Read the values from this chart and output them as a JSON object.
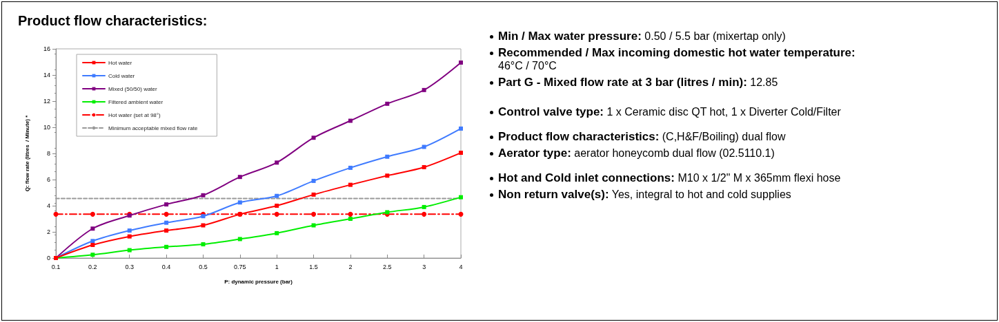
{
  "chart_data": [
    {
      "type": "line",
      "title": "Product flow characteristics:",
      "xlabel": "P: dynamic pressure (bar)",
      "ylabel": "Q: flow rate (litres  / Minute) *",
      "categories": [
        "0.1",
        "0.2",
        "0.3",
        "0.4",
        "0.5",
        "0.75",
        "1",
        "1.5",
        "2",
        "2.5",
        "3",
        "4"
      ],
      "series": [
        {
          "name": "Hot water",
          "color": "#ff0000",
          "marker": "square",
          "line_style": "solid",
          "values": [
            0,
            1.0,
            1.65,
            2.1,
            2.5,
            3.35,
            4.0,
            4.85,
            5.6,
            6.3,
            6.95,
            8.05
          ]
        },
        {
          "name": "Cold water",
          "color": "#3f7bff",
          "marker": "square",
          "line_style": "solid",
          "values": [
            0,
            1.3,
            2.1,
            2.7,
            3.2,
            4.25,
            4.75,
            5.9,
            6.9,
            7.75,
            8.5,
            9.9
          ]
        },
        {
          "name": "Mixed (50/50) water",
          "color": "#800080",
          "marker": "square",
          "line_style": "solid",
          "values": [
            0,
            2.25,
            3.25,
            4.1,
            4.8,
            6.2,
            7.3,
            9.2,
            10.5,
            11.8,
            12.85,
            14.95
          ]
        },
        {
          "name": "Filtered ambient water",
          "color": "#00ee00",
          "marker": "square",
          "line_style": "solid",
          "values": [
            0,
            0.25,
            0.6,
            0.85,
            1.05,
            1.45,
            1.9,
            2.5,
            3.0,
            3.5,
            3.9,
            4.65
          ]
        },
        {
          "name": "Hot water (set at 98°)",
          "color": "#ff0000",
          "marker": "circle",
          "line_style": "dashdot",
          "values": [
            3.35,
            3.35,
            3.35,
            3.35,
            3.35,
            3.35,
            3.35,
            3.35,
            3.35,
            3.35,
            3.35,
            3.35
          ]
        },
        {
          "name": "Minimum acceptable mixed flow rate",
          "color": "#999999",
          "marker": "none",
          "line_style": "dashed",
          "values": [
            4.55,
            4.55,
            4.55,
            4.55,
            4.55,
            4.55,
            4.55,
            4.55,
            4.55,
            4.55,
            4.55,
            4.55
          ]
        }
      ],
      "ylim": [
        0,
        16
      ],
      "yticks": [
        0,
        2,
        4,
        6,
        8,
        10,
        12,
        14,
        16
      ],
      "grid": false,
      "legend": "top left"
    },
    {
      "type": "other",
      "annotations": [
        "Min / Max water pressure: 0.50 / 5.5 bar (mixertap only)",
        "Recommended / Max incoming domestic hot water temperature: 46°C / 70°C",
        "Part G - Mixed flow rate at 3 bar (litres / min): 12.85",
        "Control valve type:  1 x Ceramic disc QT hot, 1 x Diverter Cold/Filter",
        "Product flow characteristics: (C,H&F/Boiling) dual flow",
        "Aerator type: aerator honeycomb dual flow (02.5110.1)",
        "Hot and Cold inlet connections: M10 x 1/2\" M x 365mm flexi hose",
        "Non return valve(s): Yes, integral to hot and cold supplies"
      ]
    }
  ]
}
